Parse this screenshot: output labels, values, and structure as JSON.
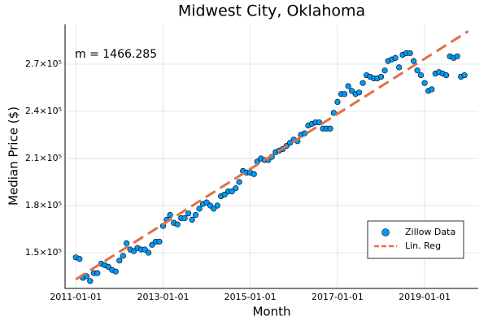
{
  "chart_data": {
    "type": "scatter",
    "title": "Midwest City, Oklahoma",
    "x_label": "Month",
    "y_label": "Median Price ($)",
    "annotation": "m = 1466.285",
    "grid": true,
    "legend_position": "bottom right",
    "xlim": [
      "2010-10-03",
      "2020-03-25"
    ],
    "xticks": [
      "2011-01-01",
      "2013-01-01",
      "2015-01-01",
      "2017-01-01",
      "2019-01-01"
    ],
    "ylim": [
      127240,
      295350
    ],
    "yticks": [
      {
        "value": 150000,
        "label": "1.5×10⁵"
      },
      {
        "value": 180000,
        "label": "1.8×10⁵"
      },
      {
        "value": 210000,
        "label": "2.1×10⁵"
      },
      {
        "value": 240000,
        "label": "2.4×10⁵"
      },
      {
        "value": 270000,
        "label": "2.7×10⁵"
      }
    ],
    "series": [
      {
        "name": "Zillow Data",
        "type": "scatter",
        "color": "#009af9",
        "x": [
          "2011-01-01",
          "2011-02-01",
          "2011-03-01",
          "2011-04-01",
          "2011-05-01",
          "2011-06-01",
          "2011-07-01",
          "2011-08-01",
          "2011-09-01",
          "2011-10-01",
          "2011-11-01",
          "2011-12-01",
          "2012-01-01",
          "2012-02-01",
          "2012-03-01",
          "2012-04-01",
          "2012-05-01",
          "2012-06-01",
          "2012-07-01",
          "2012-08-01",
          "2012-09-01",
          "2012-10-01",
          "2012-11-01",
          "2012-12-01",
          "2013-01-01",
          "2013-02-01",
          "2013-03-01",
          "2013-04-01",
          "2013-05-01",
          "2013-06-01",
          "2013-07-01",
          "2013-08-01",
          "2013-09-01",
          "2013-10-01",
          "2013-11-01",
          "2013-12-01",
          "2014-01-01",
          "2014-02-01",
          "2014-03-01",
          "2014-04-01",
          "2014-05-01",
          "2014-06-01",
          "2014-07-01",
          "2014-08-01",
          "2014-09-01",
          "2014-10-01",
          "2014-11-01",
          "2014-12-01",
          "2015-01-01",
          "2015-02-01",
          "2015-03-01",
          "2015-04-01",
          "2015-05-01",
          "2015-06-01",
          "2015-07-01",
          "2015-08-01",
          "2015-09-01",
          "2015-10-01",
          "2015-11-01",
          "2015-12-01",
          "2016-01-01",
          "2016-02-01",
          "2016-03-01",
          "2016-04-01",
          "2016-05-01",
          "2016-06-01",
          "2016-07-01",
          "2016-08-01",
          "2016-09-01",
          "2016-10-01",
          "2016-11-01",
          "2016-12-01",
          "2017-01-01",
          "2017-02-01",
          "2017-03-01",
          "2017-04-01",
          "2017-05-01",
          "2017-06-01",
          "2017-07-01",
          "2017-08-01",
          "2017-09-01",
          "2017-10-01",
          "2017-11-01",
          "2017-12-01",
          "2018-01-01",
          "2018-02-01",
          "2018-03-01",
          "2018-04-01",
          "2018-05-01",
          "2018-06-01",
          "2018-07-01",
          "2018-08-01",
          "2018-09-01",
          "2018-10-01",
          "2018-11-01",
          "2018-12-01",
          "2019-01-01",
          "2019-02-01",
          "2019-03-01",
          "2019-04-01",
          "2019-05-01",
          "2019-06-01",
          "2019-07-01",
          "2019-08-01",
          "2019-09-01",
          "2019-10-01",
          "2019-11-01",
          "2019-12-01"
        ],
        "values": [
          147000,
          146000,
          134000,
          135000,
          132000,
          137000,
          137000,
          143000,
          142000,
          141000,
          139000,
          138000,
          145000,
          148000,
          156000,
          152000,
          151000,
          153000,
          152000,
          152000,
          150000,
          155000,
          157000,
          157000,
          167000,
          171000,
          174000,
          169000,
          168000,
          172000,
          172000,
          175000,
          171000,
          174000,
          178000,
          181000,
          182000,
          180000,
          178000,
          180000,
          186000,
          187000,
          189000,
          189000,
          191000,
          195000,
          202000,
          201000,
          201000,
          200000,
          208000,
          210000,
          209000,
          209000,
          211000,
          214000,
          215000,
          216000,
          218000,
          220000,
          222000,
          221000,
          225000,
          226000,
          231000,
          232000,
          233000,
          233000,
          229000,
          229000,
          229000,
          239000,
          246000,
          251000,
          251000,
          256000,
          253000,
          251000,
          252000,
          258000,
          263000,
          262000,
          261000,
          261000,
          262000,
          266000,
          272000,
          273000,
          274000,
          268000,
          276000,
          277000,
          277000,
          272000,
          266000,
          263000,
          258000,
          253000,
          254000,
          264000,
          265000,
          264000,
          263000,
          275000,
          274000,
          275000,
          262000,
          263000
        ]
      },
      {
        "name": "Lin. Reg",
        "type": "line",
        "color": "#e26f46",
        "dashed": true,
        "x": [
          "2011-01-01",
          "2020-01-01"
        ],
        "values": [
          133000,
          291000
        ]
      }
    ]
  }
}
